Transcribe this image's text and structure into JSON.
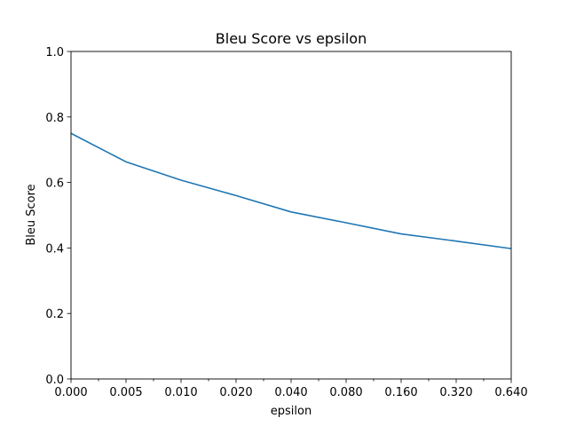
{
  "chart_data": {
    "type": "line",
    "title": "Bleu Score vs epsilon",
    "xlabel": "epsilon",
    "ylabel": "Bleu Score",
    "categories": [
      "0.000",
      "0.005",
      "0.010",
      "0.020",
      "0.040",
      "0.080",
      "0.160",
      "0.320",
      "0.640"
    ],
    "series": [
      {
        "values": [
          0.75,
          0.663,
          0.607,
          0.56,
          0.51,
          0.477,
          0.443,
          0.421,
          0.398
        ],
        "color": "#1f77b4"
      }
    ],
    "ylim": [
      0,
      1
    ],
    "yticks": [
      "0.0",
      "0.2",
      "0.4",
      "0.6",
      "0.8",
      "1.0"
    ],
    "grid": false,
    "legend": "none"
  }
}
